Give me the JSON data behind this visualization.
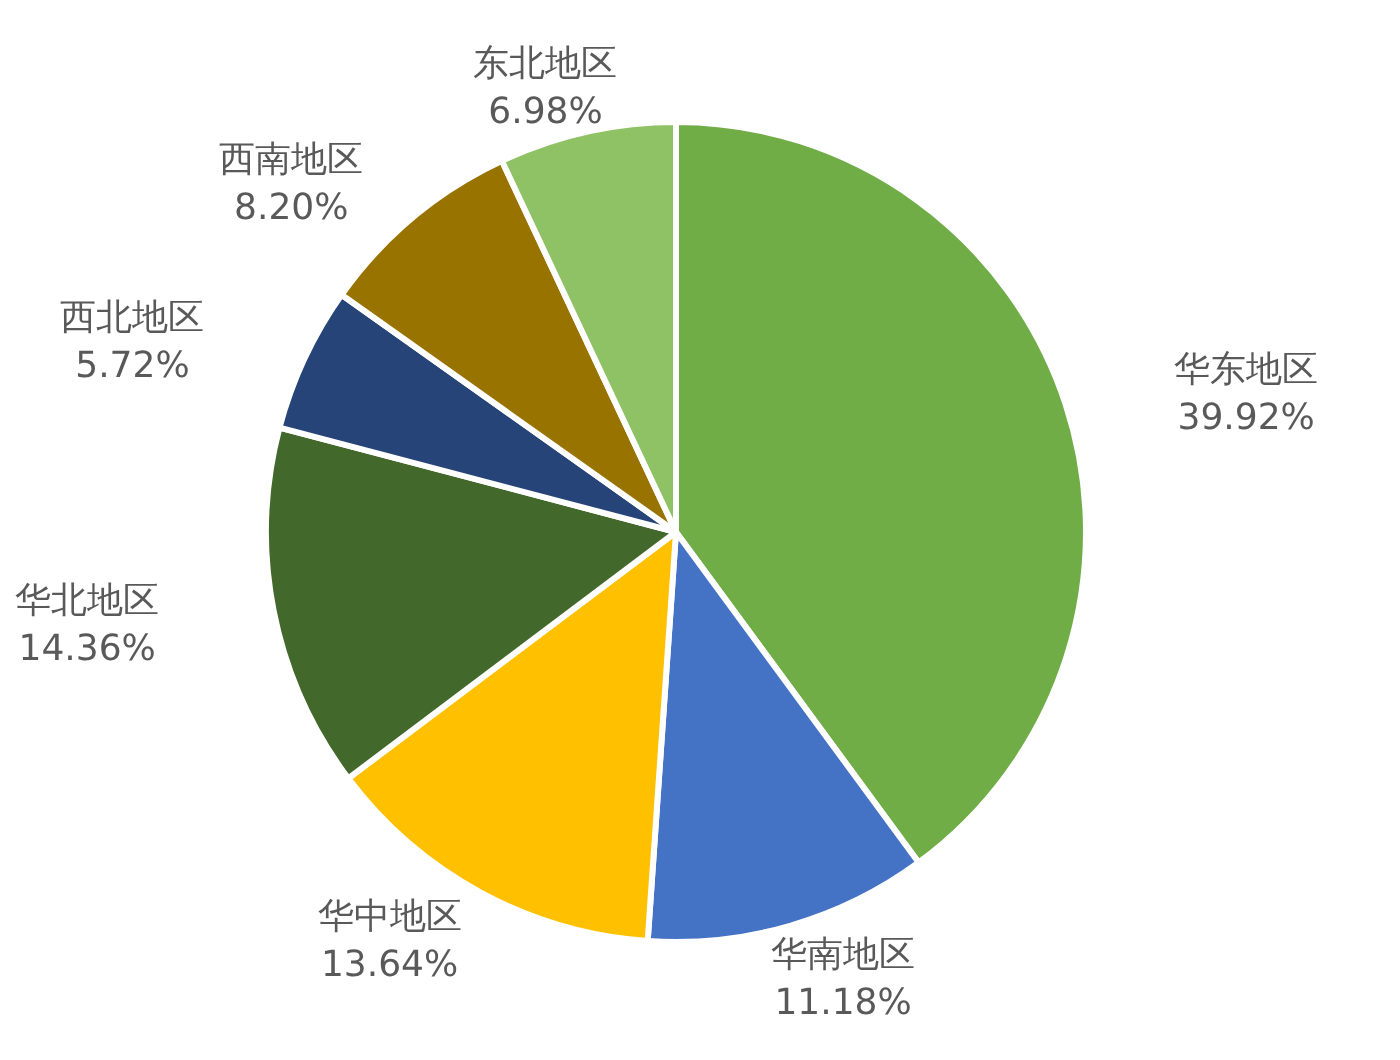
{
  "chart_data": {
    "type": "pie",
    "categories": [
      "华东地区",
      "华南地区",
      "华中地区",
      "华北地区",
      "西北地区",
      "西南地区",
      "东北地区"
    ],
    "values": [
      39.92,
      11.18,
      13.64,
      14.36,
      5.72,
      8.2,
      6.98
    ],
    "value_labels": [
      "39.92%",
      "11.18%",
      "13.64%",
      "14.36%",
      "5.72%",
      "8.20%",
      "6.98%"
    ],
    "colors": [
      "#70ad47",
      "#4472c4",
      "#ffc000",
      "#43682b",
      "#264478",
      "#997300",
      "#8fc165"
    ]
  }
}
